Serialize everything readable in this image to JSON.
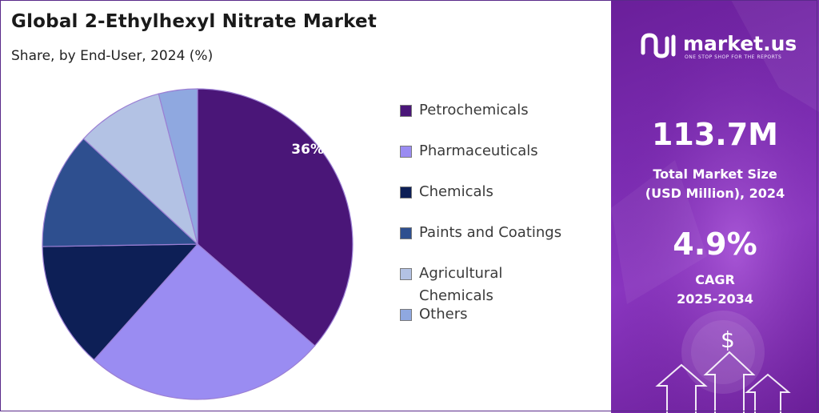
{
  "header": {
    "title": "Global 2-Ethylhexyl Nitrate Market",
    "subtitle": "Share, by End-User, 2024 (%)"
  },
  "chart_data": {
    "type": "pie",
    "title": "Global 2-Ethylhexyl Nitrate Market",
    "subtitle": "Share, by End-User, 2024 (%)",
    "categories": [
      "Petrochemicals",
      "Pharmaceuticals",
      "Chemicals",
      "Paints and Coatings",
      "Agricultural Chemicals",
      "Others"
    ],
    "values": [
      36,
      25,
      13,
      12,
      9,
      4
    ],
    "data_labels": [
      "36%",
      "",
      "",
      "",
      "",
      ""
    ],
    "colors": [
      "#4a1678",
      "#9a8cf2",
      "#0d1f56",
      "#2e4f8f",
      "#b3c2e4",
      "#8fa8e0"
    ],
    "legend_position": "right"
  },
  "legend": {
    "items": [
      {
        "label": "Petrochemicals",
        "color": "#4a1678"
      },
      {
        "label": "Pharmaceuticals",
        "color": "#9a8cf2"
      },
      {
        "label": "Chemicals",
        "color": "#0d1f56"
      },
      {
        "label": "Paints and Coatings",
        "color": "#2e4f8f"
      },
      {
        "label": "Agricultural Chemicals",
        "color": "#b3c2e4"
      },
      {
        "label": "Others",
        "color": "#8fa8e0"
      }
    ]
  },
  "sidebar": {
    "brand": "market.us",
    "tagline": "ONE STOP SHOP FOR THE REPORTS",
    "market_size_value": "113.7M",
    "market_size_label_line1": "Total Market Size",
    "market_size_label_line2": "(USD Million), 2024",
    "cagr_value": "4.9%",
    "cagr_label_line1": "CAGR",
    "cagr_label_line2": "2025-2034",
    "dollar_symbol": "$",
    "background_color": "#7a2bb0"
  }
}
